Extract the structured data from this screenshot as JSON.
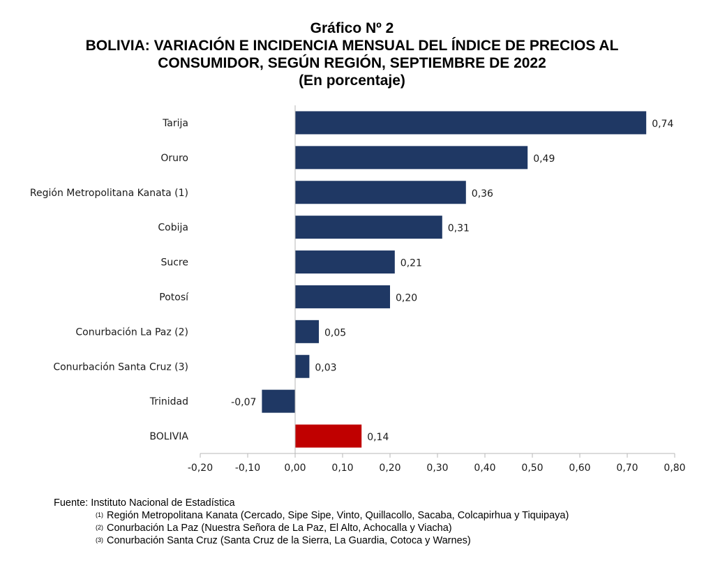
{
  "header": {
    "chart_number": "Gráfico Nº 2",
    "title_line1": "BOLIVIA: VARIACIÓN E INCIDENCIA MENSUAL DEL ÍNDICE DE PRECIOS AL",
    "title_line2": "CONSUMIDOR, SEGÚN REGIÓN, SEPTIEMBRE DE 2022",
    "subtitle": "(En porcentaje)"
  },
  "colors": {
    "regions": "#1f3864",
    "national": "#c00000",
    "axis": "#b7b7b7"
  },
  "chart_data": {
    "type": "bar",
    "orientation": "horizontal",
    "categories": [
      "Tarija",
      "Oruro",
      "Región Metropolitana Kanata (1)",
      "Cobija",
      "Sucre",
      "Potosí",
      "Conurbación La Paz (2)",
      "Conurbación Santa Cruz (3)",
      "Trinidad",
      "BOLIVIA"
    ],
    "values": [
      0.74,
      0.49,
      0.36,
      0.31,
      0.21,
      0.2,
      0.05,
      0.03,
      -0.07,
      0.14
    ],
    "value_labels": [
      "0,74",
      "0,49",
      "0,36",
      "0,31",
      "0,21",
      "0,20",
      "0,05",
      "0,03",
      "-0,07",
      "0,14"
    ],
    "highlight_category": "BOLIVIA",
    "xlim": [
      -0.2,
      0.8
    ],
    "x_ticks": [
      -0.2,
      -0.1,
      0.0,
      0.1,
      0.2,
      0.3,
      0.4,
      0.5,
      0.6,
      0.7,
      0.8
    ],
    "x_tick_labels": [
      "-0,20",
      "-0,10",
      "0,00",
      "0,10",
      "0,20",
      "0,30",
      "0,40",
      "0,50",
      "0,60",
      "0,70",
      "0,80"
    ],
    "grid": false
  },
  "footer": {
    "source": "Fuente: Instituto Nacional de Estadística",
    "notes": [
      {
        "mark": "(1)",
        "text": "Región Metropolitana Kanata (Cercado, Sipe Sipe, Vinto, Quillacollo, Sacaba, Colcapirhua y Tiquipaya)"
      },
      {
        "mark": "(2)",
        "text": "Conurbación La Paz (Nuestra Señora de La Paz, El Alto, Achocalla y Viacha)"
      },
      {
        "mark": "(3)",
        "text": "Conurbación Santa Cruz (Santa Cruz de la Sierra, La Guardia, Cotoca y Warnes)"
      }
    ]
  }
}
